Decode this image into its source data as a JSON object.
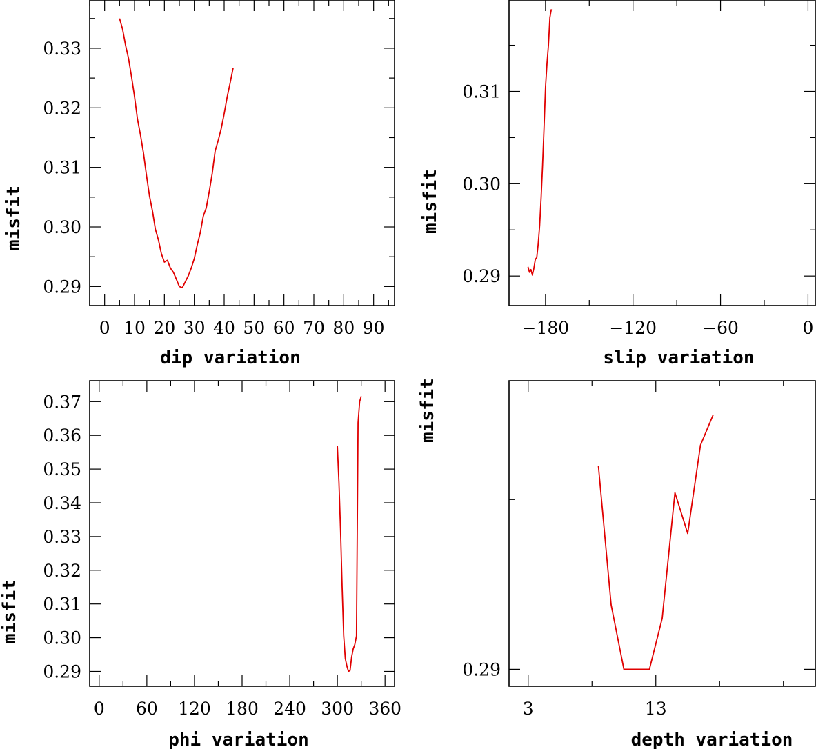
{
  "chart_data": [
    {
      "type": "line",
      "xlabel": "dip     variation",
      "ylabel": "misfit",
      "xlim": [
        -5,
        97
      ],
      "ylim": [
        0.2868,
        0.3381
      ],
      "xticks": [
        0,
        10,
        20,
        30,
        40,
        50,
        60,
        70,
        80,
        90
      ],
      "xtick_labels": [
        "0",
        "10",
        "20",
        "30",
        "40",
        "50",
        "60",
        "70",
        "80",
        "90"
      ],
      "yticks": [
        0.29,
        0.3,
        0.31,
        0.32,
        0.33
      ],
      "ytick_labels": [
        "0.29",
        "0.30",
        "0.31",
        "0.32",
        "0.33"
      ],
      "series": [
        {
          "color": "#e00000",
          "x": [
            5,
            6,
            7,
            8,
            9,
            10,
            11,
            12,
            13,
            14,
            15,
            16,
            17,
            18,
            19,
            20,
            21,
            22,
            23,
            24,
            25,
            26,
            27,
            28,
            29,
            30,
            31,
            32,
            33,
            34,
            35,
            36,
            37,
            38,
            39,
            40,
            41,
            42,
            43
          ],
          "y": [
            0.335,
            0.3332,
            0.3305,
            0.3283,
            0.3252,
            0.3219,
            0.3181,
            0.3154,
            0.3124,
            0.3087,
            0.3052,
            0.3027,
            0.2996,
            0.2978,
            0.2955,
            0.2941,
            0.2944,
            0.2931,
            0.2924,
            0.2912,
            0.29,
            0.2898,
            0.2908,
            0.2918,
            0.2931,
            0.2947,
            0.297,
            0.299,
            0.3018,
            0.3032,
            0.3059,
            0.309,
            0.3128,
            0.3145,
            0.3165,
            0.319,
            0.3218,
            0.3242,
            0.3267
          ]
        }
      ]
    },
    {
      "type": "line",
      "xlabel": "slip    variation",
      "ylabel": "misfit",
      "xlim": [
        -205,
        5
      ],
      "ylim": [
        0.2868,
        0.3199
      ],
      "xticks": [
        -180,
        -120,
        -60,
        0
      ],
      "xtick_labels": [
        "−180",
        "−120",
        "−60",
        "0"
      ],
      "yticks": [
        0.29,
        0.3,
        0.31
      ],
      "ytick_labels": [
        "0.29",
        "0.30",
        "0.31"
      ],
      "series": [
        {
          "color": "#e00000",
          "x": [
            -192,
            -191,
            -190,
            -189,
            -188,
            -187,
            -186,
            -185,
            -184,
            -183,
            -182,
            -181,
            -180,
            -179,
            -178,
            -177,
            -176
          ],
          "y": [
            0.291,
            0.2904,
            0.2907,
            0.2901,
            0.2908,
            0.2918,
            0.292,
            0.2935,
            0.2955,
            0.2985,
            0.302,
            0.306,
            0.3105,
            0.313,
            0.315,
            0.318,
            0.3189
          ]
        }
      ]
    },
    {
      "type": "line",
      "xlabel": "phi     variation",
      "ylabel": "misfit",
      "xlim": [
        -12,
        372
      ],
      "ylim": [
        0.2856,
        0.3762
      ],
      "xticks": [
        0,
        60,
        120,
        180,
        240,
        300,
        360
      ],
      "xtick_labels": [
        "0",
        "60",
        "120",
        "180",
        "240",
        "300",
        "360"
      ],
      "yticks": [
        0.29,
        0.3,
        0.31,
        0.32,
        0.33,
        0.34,
        0.35,
        0.36,
        0.37
      ],
      "ytick_labels": [
        "0.29",
        "0.30",
        "0.31",
        "0.32",
        "0.33",
        "0.34",
        "0.35",
        "0.36",
        "0.37"
      ],
      "series": [
        {
          "color": "#e00000",
          "x": [
            300,
            302,
            304,
            306,
            308,
            310,
            312,
            314,
            316,
            318,
            320,
            322,
            324,
            326,
            328,
            330
          ],
          "y": [
            0.3568,
            0.346,
            0.332,
            0.315,
            0.3005,
            0.2938,
            0.2916,
            0.29,
            0.2903,
            0.2943,
            0.2967,
            0.298,
            0.3005,
            0.3637,
            0.37,
            0.3716
          ]
        }
      ]
    },
    {
      "type": "line",
      "xlabel": "depth   variation",
      "ylabel": "misfit",
      "xlim": [
        1.5,
        25.5
      ],
      "ylim": [
        0.2895,
        0.2985
      ],
      "xticks": [
        3,
        13
      ],
      "xtick_labels": [
        "3",
        "13"
      ],
      "yticks": [
        0.29
      ],
      "ytick_labels": [
        "0.29"
      ],
      "series": [
        {
          "color": "#e00000",
          "x": [
            8.5,
            9.5,
            10.5,
            11.5,
            12.5,
            13.5,
            14.5,
            15.5,
            16.5,
            17.5
          ],
          "y": [
            0.296,
            0.2919,
            0.29,
            0.29,
            0.29,
            0.2915,
            0.2952,
            0.294,
            0.2966,
            0.2975
          ]
        }
      ]
    }
  ]
}
